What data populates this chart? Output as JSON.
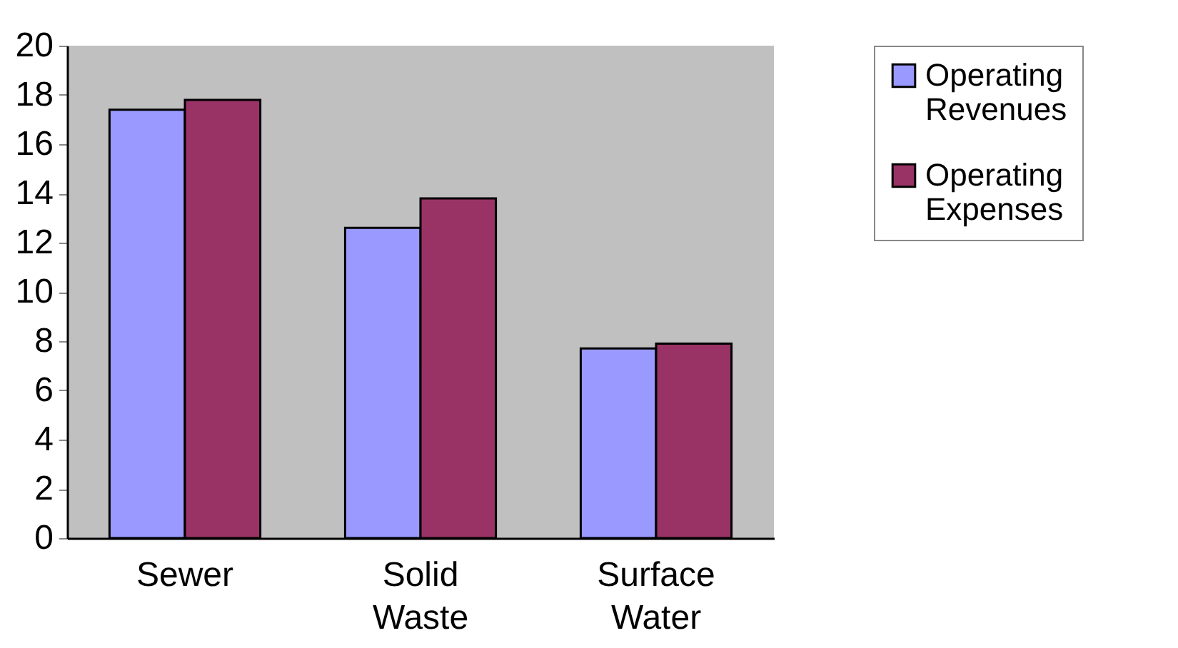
{
  "chart_data": {
    "type": "bar",
    "categories": [
      "Sewer",
      "Solid Waste",
      "Surface Water"
    ],
    "series": [
      {
        "name": "Operating Revenues",
        "color": "#9999ff",
        "values": [
          17.4,
          12.6,
          7.7
        ]
      },
      {
        "name": "Operating Expenses",
        "color": "#993366",
        "values": [
          17.8,
          13.8,
          7.9
        ]
      }
    ],
    "ylim": [
      0,
      20
    ],
    "yticks": [
      0,
      2,
      4,
      6,
      8,
      10,
      12,
      14,
      16,
      18,
      20
    ],
    "grid": false,
    "legend": "right"
  }
}
